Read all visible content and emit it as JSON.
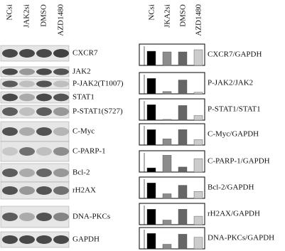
{
  "blot": {
    "lanes": [
      "NCsi",
      "JAK2si",
      "DMSO",
      "AZD1480"
    ],
    "proteins": [
      "CXCR7",
      "JAK2",
      "P-JAK2(T1007)",
      "STAT1",
      "P-STAT1(S727)",
      "C-Myc",
      "C-PARP-1",
      "Bcl-2",
      "rH2AX",
      "DNA-PKCs",
      "GAPDH"
    ]
  },
  "chart_lanes": [
    "NCsi",
    "JKA2si",
    "DMSO",
    "AZD1480"
  ],
  "chart_data": [
    {
      "type": "bar",
      "title": "CXCR7/GAPDH",
      "values": [
        1,
        0.95,
        0.95,
        1.1
      ],
      "colors": [
        "#000000",
        "#8c8c8c",
        "#666666",
        "#cccccc"
      ],
      "ylim": [
        0,
        1.3
      ]
    },
    {
      "type": "bar",
      "title": "P-JAK2/JAK2",
      "values": [
        1,
        0.15,
        0.9,
        0.1
      ],
      "colors": [
        "#000000",
        "#8c8c8c",
        "#666666",
        "#cccccc"
      ],
      "ylim": [
        0,
        1.2
      ]
    },
    {
      "type": "bar",
      "title": "P-STAT1/STAT1",
      "values": [
        1,
        0.05,
        0.95,
        0.3
      ],
      "colors": [
        "#000000",
        "#8c8c8c",
        "#666666",
        "#cccccc"
      ],
      "ylim": [
        0,
        1.2
      ]
    },
    {
      "type": "bar",
      "title": "C-Myc/GAPDH",
      "values": [
        1,
        0.4,
        1,
        0.35
      ],
      "colors": [
        "#000000",
        "#8c8c8c",
        "#666666",
        "#cccccc"
      ],
      "ylim": [
        0,
        1.2
      ]
    },
    {
      "type": "bar",
      "title": "C-PARP-1/GAPDH",
      "values": [
        0.25,
        1,
        0.3,
        0.8
      ],
      "colors": [
        "#000000",
        "#8c8c8c",
        "#666666",
        "#cccccc"
      ],
      "ylim": [
        0,
        1.1
      ]
    },
    {
      "type": "bar",
      "title": "Bcl-2/GAPDH",
      "values": [
        1,
        0.3,
        0.85,
        0.45
      ],
      "colors": [
        "#000000",
        "#8c8c8c",
        "#666666",
        "#cccccc"
      ],
      "ylim": [
        0,
        1.2
      ]
    },
    {
      "type": "bar",
      "title": "rH2AX/GAPDH",
      "values": [
        1,
        0.3,
        1,
        0.55
      ],
      "colors": [
        "#000000",
        "#8c8c8c",
        "#666666",
        "#cccccc"
      ],
      "ylim": [
        0,
        1.2
      ]
    },
    {
      "type": "bar",
      "title": "DNA-PKCs/GAPDH",
      "values": [
        1,
        0.3,
        0.95,
        0.75
      ],
      "colors": [
        "#000000",
        "#8c8c8c",
        "#666666",
        "#cccccc"
      ],
      "ylim": [
        0,
        1.2
      ]
    }
  ]
}
